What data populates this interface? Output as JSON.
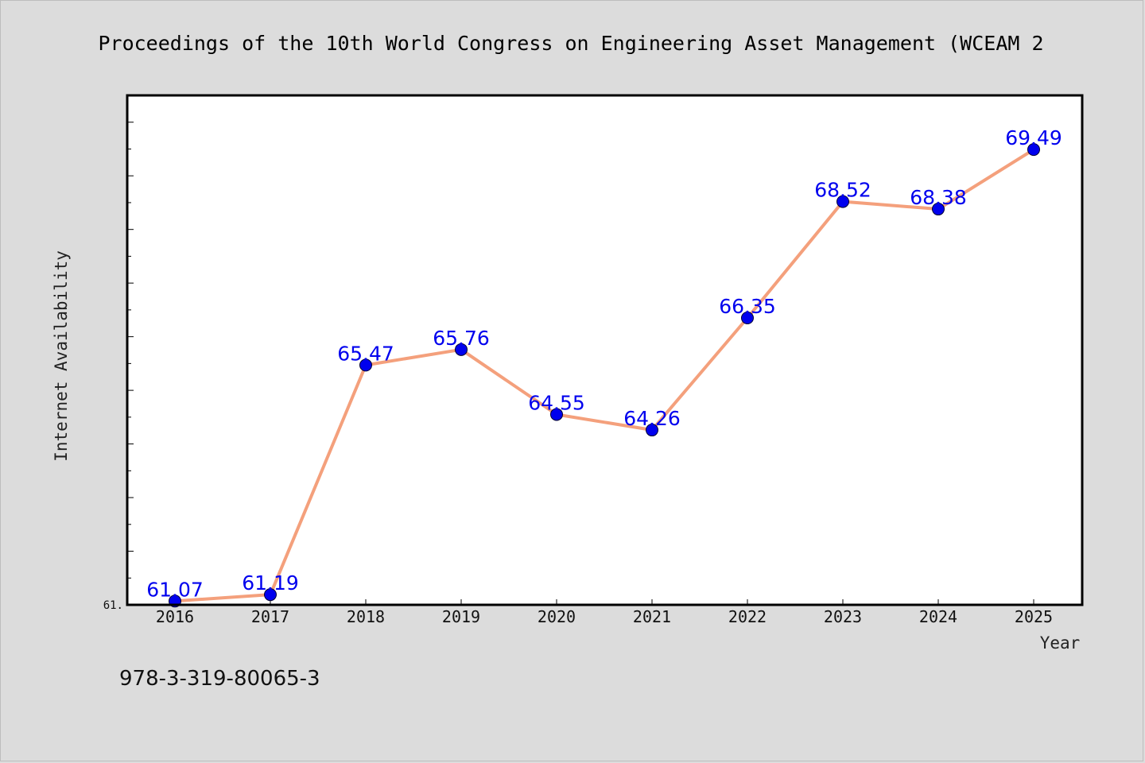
{
  "title": "Proceedings of the 10th World Congress on Engineering Asset Management (WCEAM 2",
  "footer": "978-3-319-80065-3",
  "colors": {
    "background": "#dcdcdc",
    "plot_background": "#ffffff",
    "line": "#f4a07c",
    "marker": "#0000ee",
    "label": "#0000ee"
  },
  "chart_data": {
    "type": "line",
    "x": [
      "2016",
      "2017",
      "2018",
      "2019",
      "2020",
      "2021",
      "2022",
      "2023",
      "2024",
      "2025"
    ],
    "series": [
      {
        "values": [
          61.07,
          61.19,
          65.47,
          65.76,
          64.55,
          64.26,
          66.35,
          68.52,
          68.38,
          69.49
        ],
        "labels": [
          "61.07",
          "61.19",
          "65.47",
          "65.76",
          "64.55",
          "64.26",
          "66.35",
          "68.52",
          "68.38",
          "69.49"
        ]
      }
    ],
    "xlabel": "Year",
    "ylabel": "Internet Availability",
    "y_tick_labels": [
      "61."
    ],
    "ylim": [
      61.0,
      70.5
    ],
    "grid": false,
    "legend": "none"
  }
}
